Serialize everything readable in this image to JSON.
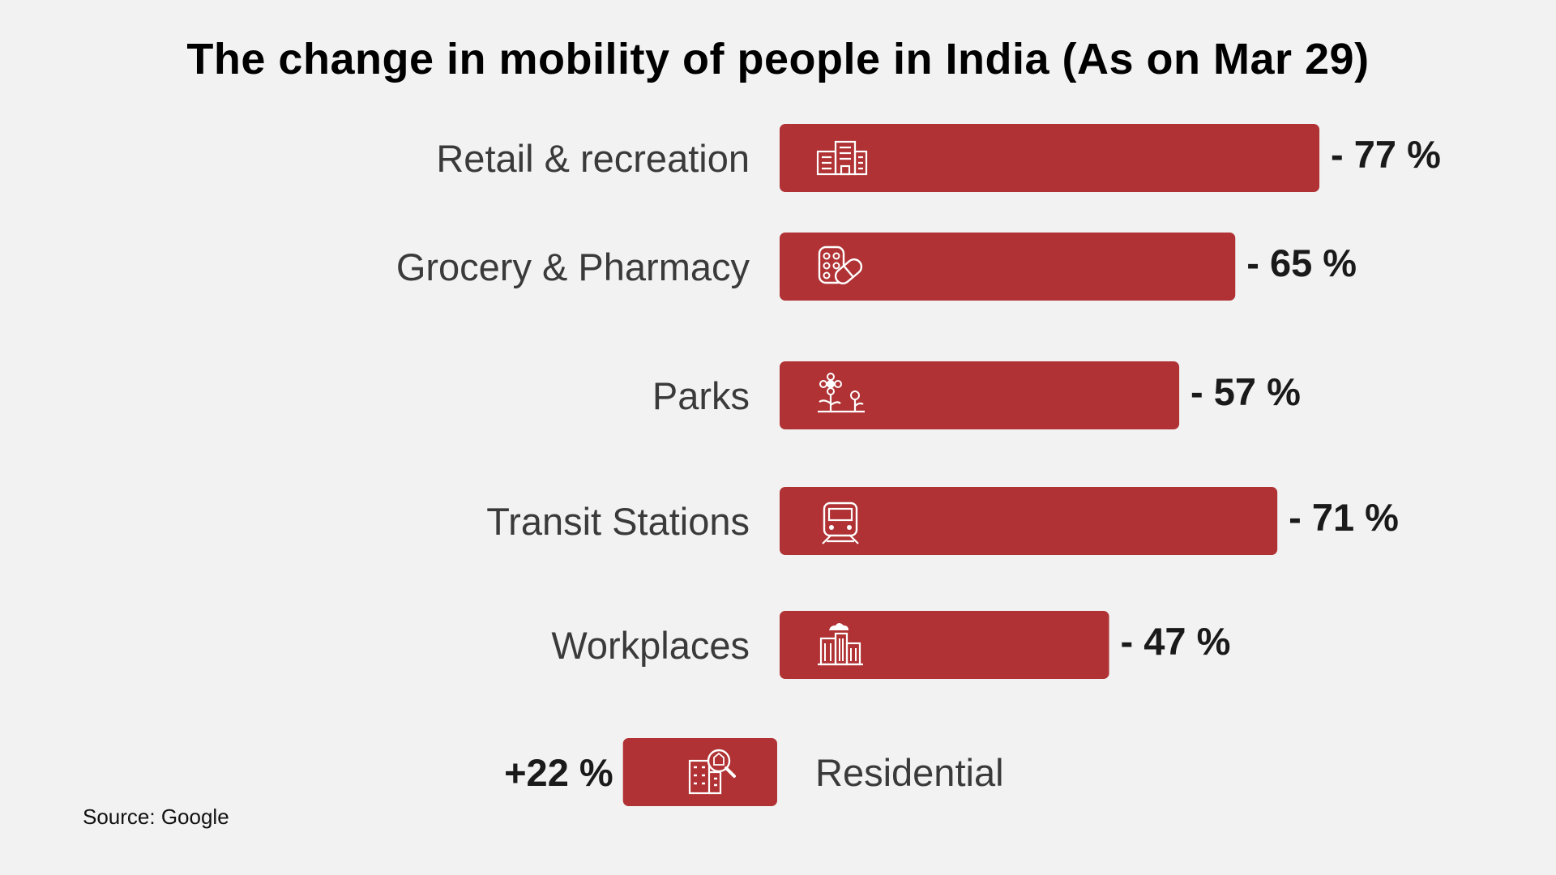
{
  "chart_data": {
    "type": "bar",
    "orientation": "horizontal",
    "title": "The change in mobility of people in India (As on Mar 29)",
    "categories": [
      "Retail & recreation",
      "Grocery & Pharmacy",
      "Parks",
      "Transit Stations",
      "Workplaces",
      "Residential"
    ],
    "values": [
      -77,
      -65,
      -57,
      -71,
      -47,
      22
    ],
    "value_labels": [
      "- 77 %",
      "- 65 %",
      "- 57 %",
      "- 71 %",
      "- 47 %",
      "+22 %"
    ],
    "icons": [
      "building-icon",
      "pills-icon",
      "flowers-icon",
      "train-icon",
      "office-towers-icon",
      "residential-building-search-icon"
    ],
    "bar_color": "#b03234",
    "xlabel": "",
    "ylabel": "",
    "grid": false,
    "legend": "none"
  },
  "source": "Source: Google"
}
